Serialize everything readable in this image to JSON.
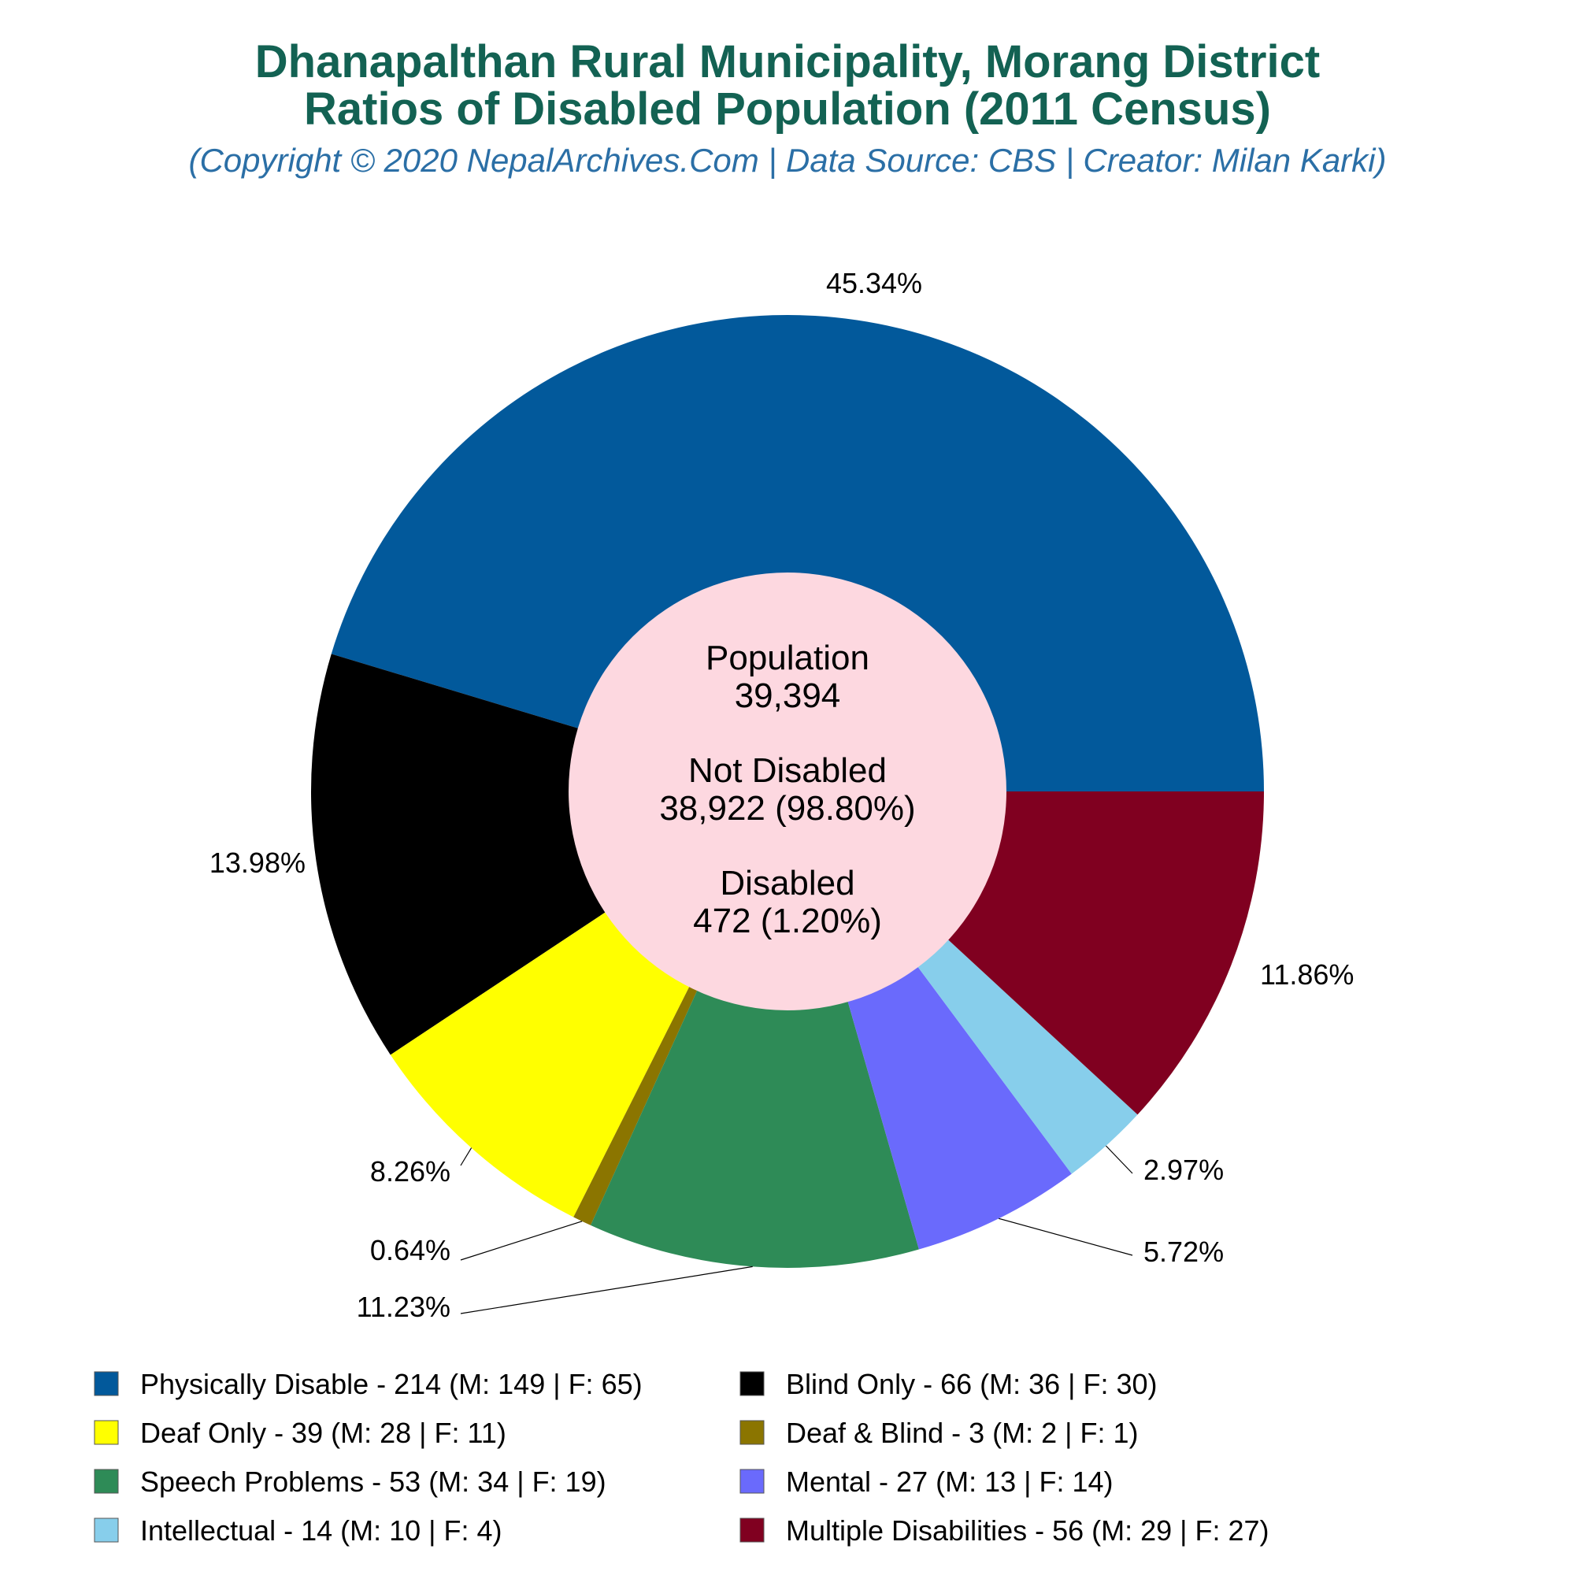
{
  "chart_data": {
    "type": "pie",
    "title_line1": "Dhanapalthan Rural Municipality, Morang District",
    "title_line2": "Ratios of Disabled Population (2011 Census)",
    "subtitle": "(Copyright © 2020 NepalArchives.Com | Data Source: CBS | Creator: Milan Karki)",
    "center": {
      "population_label": "Population",
      "population_value": "39,394",
      "not_disabled_label": "Not Disabled",
      "not_disabled_value": "38,922 (98.80%)",
      "disabled_label": "Disabled",
      "disabled_value": "472 (1.20%)"
    },
    "slices": [
      {
        "legend": "Physically Disable - 214 (M: 149 | F: 65)",
        "value": 214,
        "percent_label": "45.34%",
        "color": "#02599b"
      },
      {
        "legend": "Blind Only - 66 (M: 36 | F: 30)",
        "value": 66,
        "percent_label": "13.98%",
        "color": "#000000"
      },
      {
        "legend": "Deaf Only - 39 (M: 28 | F: 11)",
        "value": 39,
        "percent_label": "8.26%",
        "color": "#ffff00"
      },
      {
        "legend": "Deaf & Blind - 3 (M: 2 | F: 1)",
        "value": 3,
        "percent_label": "0.64%",
        "color": "#8b7500"
      },
      {
        "legend": "Speech Problems - 53 (M: 34 | F: 19)",
        "value": 53,
        "percent_label": "11.23%",
        "color": "#2e8b57"
      },
      {
        "legend": "Mental - 27 (M: 13 | F: 14)",
        "value": 27,
        "percent_label": "5.72%",
        "color": "#6a6afc"
      },
      {
        "legend": "Intellectual - 14 (M: 10 | F: 4)",
        "value": 14,
        "percent_label": "2.97%",
        "color": "#87ceeb"
      },
      {
        "legend": "Multiple Disabilities - 56 (M: 29 | F: 27)",
        "value": 56,
        "percent_label": "11.86%",
        "color": "#800020"
      }
    ],
    "center_color": "#fdd8e0",
    "direction": "counterclockwise from 3 o'clock"
  }
}
